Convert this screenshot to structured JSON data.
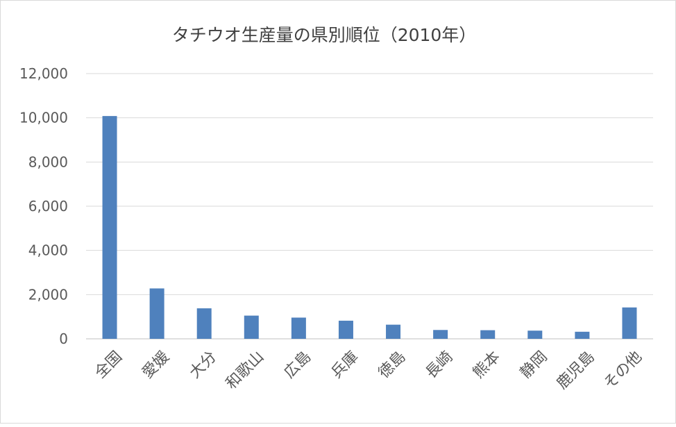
{
  "chart_data": {
    "type": "bar",
    "title": "タチウオ生産量の県別順位（2010年）",
    "xlabel": "",
    "ylabel": "",
    "categories": [
      "全国",
      "愛媛",
      "大分",
      "和歌山",
      "広島",
      "兵庫",
      "徳島",
      "長崎",
      "熊本",
      "静岡",
      "鹿児島",
      "その他"
    ],
    "values": [
      10080,
      2280,
      1380,
      1050,
      960,
      820,
      640,
      400,
      390,
      370,
      320,
      1420
    ],
    "ylim": [
      0,
      12000
    ],
    "yticks": [
      0,
      2000,
      4000,
      6000,
      8000,
      10000,
      12000
    ],
    "ytick_labels": [
      "0",
      "2,000",
      "4,000",
      "6,000",
      "8,000",
      "10,000",
      "12,000"
    ],
    "grid": true,
    "legend": "none",
    "colors": {
      "bar": "#4f81bd",
      "grid": "#d9d9d9",
      "text": "#595959"
    }
  }
}
